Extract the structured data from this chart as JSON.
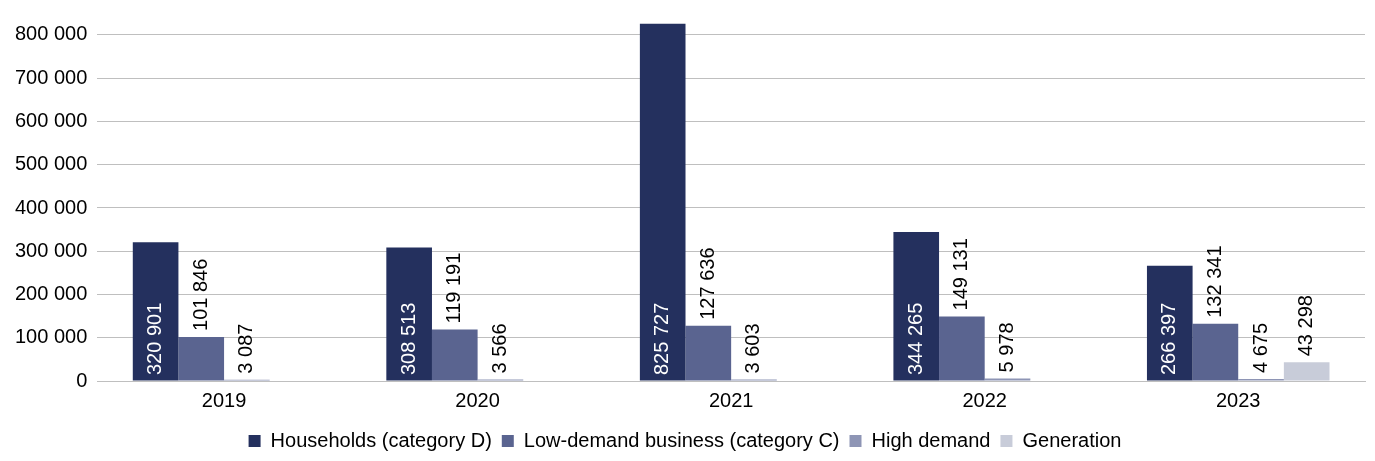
{
  "chart_data": {
    "type": "bar",
    "categories": [
      "2019",
      "2020",
      "2021",
      "2022",
      "2023"
    ],
    "series": [
      {
        "name": "Households (category D)",
        "color": "#24305e",
        "values": [
          320901,
          308513,
          825727,
          344265,
          266397
        ],
        "value_labels": [
          "320 901",
          "308 513",
          "825 727",
          "344 265",
          "266 397"
        ]
      },
      {
        "name": "Low-demand business (category C)",
        "color": "#5a6490",
        "values": [
          101846,
          119191,
          127636,
          149131,
          132341
        ],
        "value_labels": [
          "101 846",
          "119 191",
          "127 636",
          "149 131",
          "132 341"
        ]
      },
      {
        "name": "High demand",
        "color": "#8e95b5",
        "values": [
          3087,
          3566,
          3603,
          5978,
          4675
        ],
        "value_labels": [
          "3 087",
          "3 566",
          "3 603",
          "5 978",
          "4 675"
        ]
      },
      {
        "name": "Generation",
        "color": "#c8ccd9",
        "values": [
          null,
          null,
          null,
          null,
          43298
        ],
        "value_labels": [
          null,
          null,
          null,
          null,
          "43 298"
        ]
      }
    ],
    "ylim": [
      0,
      830000
    ],
    "yticks": [
      {
        "value": 0,
        "label": "0"
      },
      {
        "value": 100000,
        "label": "100 000"
      },
      {
        "value": 200000,
        "label": "200 000"
      },
      {
        "value": 300000,
        "label": "300 000"
      },
      {
        "value": 400000,
        "label": "400 000"
      },
      {
        "value": 500000,
        "label": "500 000"
      },
      {
        "value": 600000,
        "label": "600 000"
      },
      {
        "value": 700000,
        "label": "700 000"
      },
      {
        "value": 800000,
        "label": "800 000"
      }
    ],
    "grid": "y",
    "legend": "bottom"
  }
}
